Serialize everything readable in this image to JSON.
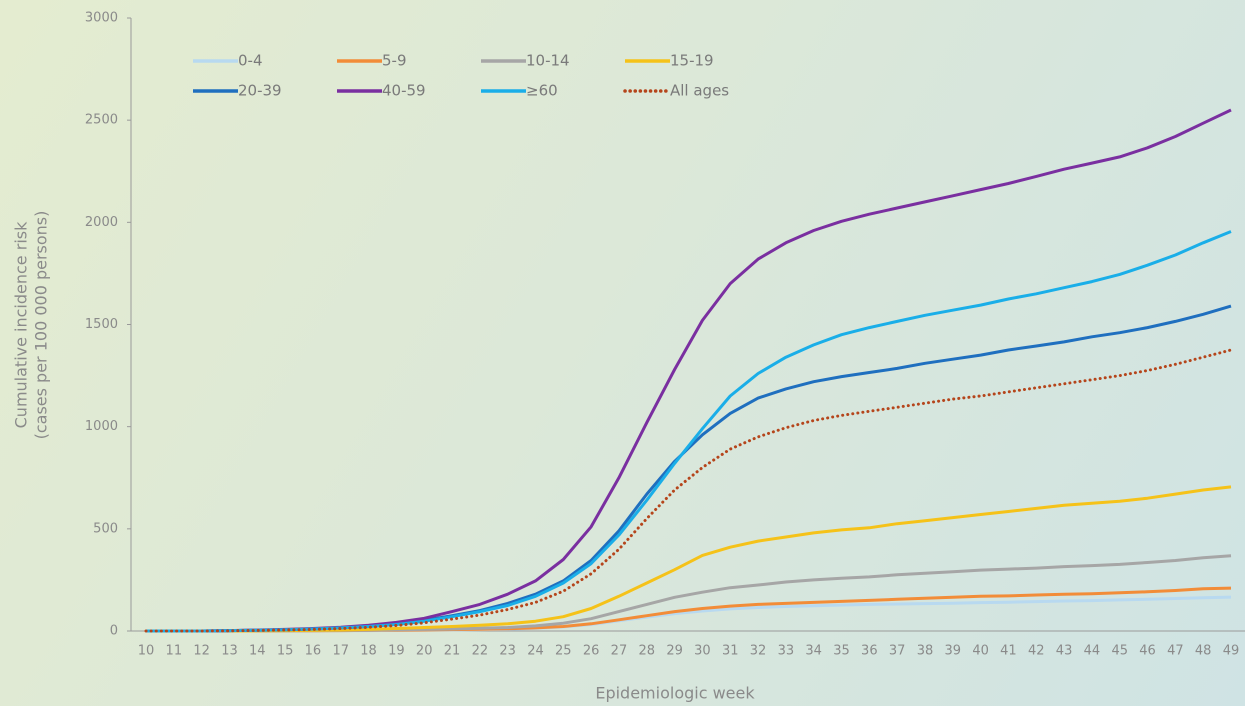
{
  "chart_data": {
    "type": "line",
    "ylabel": [
      "Cumulative incidence risk",
      "(cases per 100 000 persons)"
    ],
    "xlabel": "Epidemiologic week",
    "categories": [
      "10",
      "11",
      "12",
      "13",
      "14",
      "15",
      "16",
      "17",
      "18",
      "19",
      "20",
      "21",
      "22",
      "23",
      "24",
      "25",
      "26",
      "27",
      "28",
      "29",
      "30",
      "31",
      "32",
      "33",
      "34",
      "35",
      "36",
      "37",
      "38",
      "39",
      "40",
      "41",
      "42",
      "43",
      "44",
      "45",
      "46",
      "47",
      "48",
      "49"
    ],
    "ylim": [
      0,
      3000
    ],
    "yticks": [
      0,
      500,
      1000,
      1500,
      2000,
      2500,
      3000
    ],
    "series": [
      {
        "name": "0-4",
        "color": "#b8d9f0",
        "style": "solid",
        "values": [
          0,
          0,
          0,
          0,
          0,
          0,
          1,
          1,
          2,
          3,
          4,
          5,
          7,
          9,
          13,
          20,
          32,
          50,
          68,
          85,
          98,
          108,
          115,
          120,
          124,
          127,
          130,
          132,
          134,
          136,
          139,
          141,
          144,
          147,
          149,
          152,
          155,
          159,
          163,
          166
        ]
      },
      {
        "name": "5-9",
        "color": "#f28c38",
        "style": "solid",
        "values": [
          0,
          0,
          0,
          0,
          0,
          1,
          1,
          2,
          3,
          4,
          5,
          7,
          9,
          11,
          15,
          22,
          35,
          55,
          75,
          95,
          110,
          122,
          130,
          135,
          140,
          145,
          150,
          155,
          160,
          165,
          170,
          172,
          176,
          180,
          182,
          187,
          192,
          198,
          207,
          210
        ]
      },
      {
        "name": "10-14",
        "color": "#a6a6a6",
        "style": "solid",
        "values": [
          0,
          0,
          0,
          0,
          1,
          1,
          2,
          3,
          4,
          6,
          8,
          10,
          13,
          17,
          25,
          38,
          60,
          95,
          130,
          165,
          190,
          212,
          225,
          240,
          250,
          258,
          265,
          275,
          283,
          290,
          298,
          303,
          308,
          315,
          320,
          326,
          335,
          345,
          358,
          368
        ]
      },
      {
        "name": "15-19",
        "color": "#f5c219",
        "style": "solid",
        "values": [
          0,
          0,
          0,
          0,
          1,
          2,
          3,
          5,
          8,
          12,
          17,
          22,
          28,
          35,
          48,
          70,
          110,
          170,
          235,
          300,
          370,
          410,
          440,
          460,
          480,
          495,
          505,
          525,
          540,
          555,
          570,
          585,
          600,
          615,
          625,
          635,
          650,
          670,
          690,
          705
        ]
      },
      {
        "name": "20-39",
        "color": "#1f6fbf",
        "style": "solid",
        "values": [
          0,
          0,
          0,
          2,
          4,
          6,
          10,
          15,
          22,
          35,
          52,
          75,
          100,
          135,
          180,
          245,
          345,
          490,
          670,
          830,
          960,
          1065,
          1140,
          1185,
          1220,
          1245,
          1265,
          1285,
          1310,
          1330,
          1350,
          1375,
          1395,
          1415,
          1440,
          1460,
          1485,
          1515,
          1550,
          1590
        ]
      },
      {
        "name": "40-59",
        "color": "#7a2fa0",
        "style": "solid",
        "values": [
          0,
          0,
          0,
          2,
          5,
          8,
          12,
          18,
          28,
          42,
          62,
          95,
          130,
          180,
          245,
          350,
          510,
          750,
          1020,
          1280,
          1520,
          1700,
          1820,
          1900,
          1960,
          2005,
          2040,
          2070,
          2100,
          2130,
          2160,
          2190,
          2225,
          2260,
          2290,
          2320,
          2365,
          2420,
          2485,
          2550
        ]
      },
      {
        "name": "≥60",
        "color": "#1aaee8",
        "style": "solid",
        "values": [
          0,
          0,
          0,
          2,
          4,
          6,
          10,
          15,
          22,
          32,
          48,
          70,
          95,
          125,
          170,
          235,
          330,
          470,
          640,
          820,
          990,
          1150,
          1260,
          1340,
          1400,
          1450,
          1485,
          1515,
          1545,
          1570,
          1595,
          1625,
          1650,
          1680,
          1710,
          1745,
          1790,
          1840,
          1900,
          1955
        ]
      },
      {
        "name": "All ages",
        "color": "#b5451b",
        "style": "dotted",
        "values": [
          0,
          0,
          0,
          1,
          3,
          5,
          8,
          12,
          18,
          27,
          40,
          58,
          78,
          105,
          140,
          195,
          280,
          400,
          550,
          690,
          800,
          890,
          950,
          995,
          1030,
          1055,
          1075,
          1095,
          1115,
          1135,
          1150,
          1170,
          1190,
          1210,
          1230,
          1250,
          1275,
          1305,
          1340,
          1375
        ]
      }
    ]
  }
}
